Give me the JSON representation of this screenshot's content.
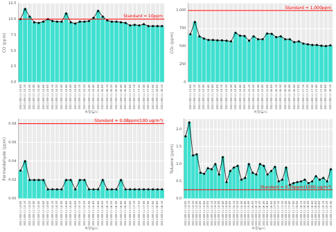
{
  "chart_data": [
    {
      "type": "bar",
      "x_label": "측정일시",
      "y_label": "CO (ppm)",
      "categories": [
        "2021-08-11 13:00",
        "2021-08-11 13:10",
        "2021-08-11 13:20",
        "2021-08-11 13:30",
        "2021-08-11 13:40",
        "2021-08-11 13:50",
        "2021-08-11 14:00",
        "2021-08-11 14:10",
        "2021-08-11 14:20",
        "2021-08-11 14:30",
        "2021-08-11 14:40",
        "2021-08-11 14:50",
        "2021-08-11 15:00",
        "2021-08-11 15:10",
        "2021-08-11 15:20",
        "2021-08-11 15:30",
        "2021-08-11 15:40",
        "2021-08-11 15:50",
        "2021-08-11 16:00",
        "2021-08-11 16:10",
        "2021-08-11 16:20",
        "2021-08-11 16:30",
        "2021-08-11 16:40",
        "2021-08-11 16:50",
        "2021-08-11 17:00",
        "2021-08-11 17:10",
        "2021-08-11 17:20",
        "2021-08-11 17:30",
        "2021-08-11 17:40",
        "2021-08-11 17:50",
        "2021-08-11 18:00",
        "2021-08-11 18:10"
      ],
      "values": [
        10.0,
        11.6,
        10.4,
        9.5,
        9.4,
        9.6,
        10.0,
        9.7,
        9.6,
        9.6,
        10.9,
        9.5,
        9.3,
        9.6,
        9.6,
        9.7,
        10.2,
        11.3,
        10.4,
        9.8,
        9.6,
        9.6,
        9.5,
        9.4,
        9.0,
        9.1,
        9.0,
        9.2,
        8.9,
        8.9,
        8.9,
        8.9
      ],
      "color": "#40e0d0",
      "marker": "circle",
      "line_style": "solid",
      "ylim": [
        0,
        12.5
      ],
      "yticks": [
        {
          "value": 0,
          "label": "0.0"
        },
        {
          "value": 2.5,
          "label": "2.5"
        },
        {
          "value": 5,
          "label": "5.0"
        },
        {
          "value": 7.5,
          "label": "7.5"
        },
        {
          "value": 10,
          "label": "10.0"
        },
        {
          "value": 12.5,
          "label": "12.5"
        }
      ],
      "annotations": [
        {
          "value": 10,
          "label": "Standard = 10ppm",
          "color": "#ff0000"
        }
      ],
      "grid": true
    },
    {
      "type": "bar",
      "x_label": "측정일시",
      "y_label": "CO₂ (ppm)",
      "categories": [
        "2021-08-11 13:00",
        "2021-08-11 13:10",
        "2021-08-11 13:20",
        "2021-08-11 13:30",
        "2021-08-11 13:40",
        "2021-08-11 13:50",
        "2021-08-11 14:00",
        "2021-08-11 14:10",
        "2021-08-11 14:20",
        "2021-08-11 14:30",
        "2021-08-11 14:40",
        "2021-08-11 14:50",
        "2021-08-11 15:00",
        "2021-08-11 15:10",
        "2021-08-11 15:20",
        "2021-08-11 15:30",
        "2021-08-11 15:40",
        "2021-08-11 15:50",
        "2021-08-11 16:00",
        "2021-08-11 16:10",
        "2021-08-11 16:20",
        "2021-08-11 16:30",
        "2021-08-11 16:40",
        "2021-08-11 16:50",
        "2021-08-11 17:00",
        "2021-08-11 17:10",
        "2021-08-11 17:20",
        "2021-08-11 17:30",
        "2021-08-11 17:40",
        "2021-08-11 17:50",
        "2021-08-11 18:00",
        "2021-08-11 18:10"
      ],
      "values": [
        670,
        840,
        640,
        610,
        590,
        590,
        585,
        585,
        580,
        570,
        690,
        650,
        645,
        580,
        640,
        600,
        600,
        680,
        675,
        630,
        640,
        600,
        600,
        560,
        570,
        540,
        530,
        520,
        520,
        510,
        505,
        515
      ],
      "color": "#40e0d0",
      "marker": "circle",
      "line_style": "solid",
      "ylim": [
        0,
        1100
      ],
      "yticks": [
        0,
        250,
        500,
        750,
        {
          "value": 1000,
          "label": "1,000"
        }
      ],
      "annotations": [
        {
          "value": 1000,
          "label": "Standard = 1,000ppm",
          "color": "#ff0000"
        }
      ],
      "grid": true
    },
    {
      "type": "bar",
      "x_label": "측정일시",
      "y_label": "Formaldehyde (ppm)",
      "categories": [
        "2021-08-11 13:00",
        "2021-08-11 13:10",
        "2021-08-11 13:20",
        "2021-08-11 13:30",
        "2021-08-11 13:40",
        "2021-08-11 13:50",
        "2021-08-11 14:00",
        "2021-08-11 14:10",
        "2021-08-11 14:20",
        "2021-08-11 14:30",
        "2021-08-11 14:40",
        "2021-08-11 14:50",
        "2021-08-11 15:00",
        "2021-08-11 15:10",
        "2021-08-11 15:20",
        "2021-08-11 15:30",
        "2021-08-11 15:40",
        "2021-08-11 15:50",
        "2021-08-11 16:00",
        "2021-08-11 16:10",
        "2021-08-11 16:20",
        "2021-08-11 16:30",
        "2021-08-11 16:40",
        "2021-08-11 16:50",
        "2021-08-11 17:00",
        "2021-08-11 17:10",
        "2021-08-11 17:20",
        "2021-08-11 17:30",
        "2021-08-11 17:40",
        "2021-08-11 17:50",
        "2021-08-11 18:00",
        "2021-08-11 18:10"
      ],
      "values": [
        0.03,
        0.04,
        0.02,
        0.02,
        0.02,
        0.02,
        0.01,
        0.01,
        0.01,
        0.01,
        0.02,
        0.02,
        0.01,
        0.02,
        0.02,
        0.01,
        0.01,
        0.01,
        0.02,
        0.01,
        0.01,
        0.01,
        0.02,
        0.01,
        0.01,
        0.01,
        0.01,
        0.01,
        0.01,
        0.01,
        0.01,
        0.01
      ],
      "color": "#40e0d0",
      "marker": "circle",
      "line_style": "solid",
      "ylim": [
        0,
        0.085
      ],
      "yticks": [
        {
          "value": 0,
          "label": "0.00"
        },
        {
          "value": 0.02,
          "label": "0.02"
        },
        {
          "value": 0.04,
          "label": "0.04"
        },
        {
          "value": 0.06,
          "label": "0.06"
        },
        {
          "value": 0.08,
          "label": "0.08"
        }
      ],
      "annotations": [
        {
          "value": 0.08,
          "label": "Standard = 0.08ppm(100 ug/m³)",
          "color": "#ff0000"
        }
      ],
      "grid": true
    },
    {
      "type": "bar",
      "x_label": "측정일시",
      "y_label": "Toluene (ppm)",
      "categories": [
        "2021-08-11 13:00",
        "2021-08-11 13:10",
        "2021-08-11 13:20",
        "2021-08-11 13:30",
        "2021-08-11 13:40",
        "2021-08-11 13:50",
        "2021-08-11 14:00",
        "2021-08-11 14:10",
        "2021-08-11 14:20",
        "2021-08-11 14:30",
        "2021-08-11 14:40",
        "2021-08-11 14:50",
        "2021-08-11 15:00",
        "2021-08-11 15:10",
        "2021-08-11 15:20",
        "2021-08-11 15:30",
        "2021-08-11 15:40",
        "2021-08-11 15:50",
        "2021-08-11 16:00",
        "2021-08-11 16:10",
        "2021-08-11 16:20",
        "2021-08-11 16:30",
        "2021-08-11 16:40",
        "2021-08-11 16:50",
        "2021-08-11 17:00",
        "2021-08-11 17:10",
        "2021-08-11 17:20",
        "2021-08-11 17:30",
        "2021-08-11 17:40",
        "2021-08-11 17:50",
        "2021-08-11 18:00",
        "2021-08-11 18:10",
        "2021-08-11 18:20",
        "2021-08-11 18:30",
        "2021-08-11 18:40",
        "2021-08-11 18:50",
        "2021-08-11 19:00",
        "2021-08-11 19:10",
        "2021-08-11 19:20",
        "2021-08-11 19:30"
      ],
      "values": [
        1.8,
        2.2,
        1.25,
        1.28,
        0.75,
        0.72,
        0.88,
        0.85,
        1.0,
        0.7,
        1.2,
        0.48,
        0.8,
        0.9,
        0.95,
        0.55,
        0.6,
        1.0,
        0.75,
        0.7,
        1.0,
        0.95,
        0.7,
        0.8,
        0.92,
        0.5,
        0.55,
        0.9,
        0.4,
        0.45,
        0.48,
        0.5,
        0.55,
        0.45,
        0.5,
        0.65,
        0.55,
        0.6,
        0.5,
        0.85
      ],
      "color": "#40e0d0",
      "marker": "circle",
      "line_style": "solid",
      "ylim": [
        0,
        2.3
      ],
      "yticks": [
        {
          "value": 0,
          "label": "0.0"
        },
        {
          "value": 0.5,
          "label": "0.5"
        },
        {
          "value": 1,
          "label": "1.0"
        },
        {
          "value": 1.5,
          "label": "1.5"
        },
        {
          "value": 2,
          "label": "2.0"
        }
      ],
      "annotations": [
        {
          "value": 0.26,
          "label": "Standard = 0.26ppm(1000 ug/m³)",
          "color": "#ff0000"
        }
      ],
      "grid": true
    }
  ]
}
